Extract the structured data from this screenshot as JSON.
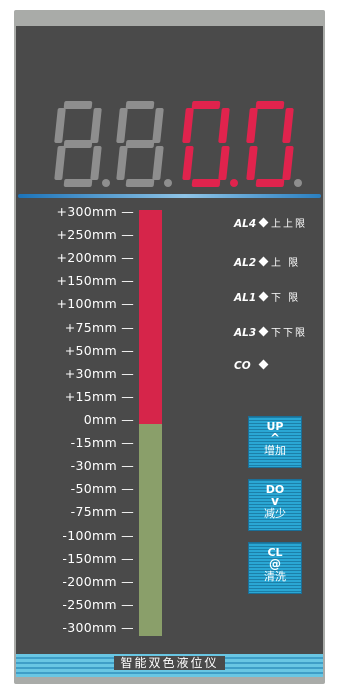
{
  "display": {
    "digits": [
      {
        "char": "8",
        "color": "#8e8e8e",
        "dot_color": "#8e8e8e"
      },
      {
        "char": "8",
        "color": "#8e8e8e",
        "dot_color": "#8e8e8e"
      },
      {
        "char": "0",
        "color": "#e0234d",
        "dot_color": "#e0234d"
      },
      {
        "char": "0",
        "color": "#e0234d",
        "dot_color": "#8e8e8e"
      }
    ]
  },
  "scale": {
    "labels": [
      "+300mm",
      "+250mm",
      "+200mm",
      "+150mm",
      "+100mm",
      "+75mm",
      "+50mm",
      "+30mm",
      "+15mm",
      "0mm",
      "-15mm",
      "-30mm",
      "-50mm",
      "-75mm",
      "-100mm",
      "-150mm",
      "-200mm",
      "-250mm",
      "-300mm"
    ],
    "upper_color": "#d6254a",
    "lower_color": "#8a9f6a"
  },
  "alarms": [
    {
      "code": "AL4",
      "desc": "上上限"
    },
    {
      "code": "AL2",
      "desc": "上 限"
    },
    {
      "code": "AL1",
      "desc": "下 限"
    },
    {
      "code": "AL3",
      "desc": "下下限"
    },
    {
      "code": "CO",
      "desc": ""
    }
  ],
  "buttons": [
    {
      "code": "UP",
      "symbol": "^",
      "label": "增加"
    },
    {
      "code": "DO",
      "symbol": "v",
      "label": "减少"
    },
    {
      "code": "CL",
      "symbol": "@",
      "label": "清洗"
    }
  ],
  "footer": {
    "title": "智能双色液位仪"
  }
}
